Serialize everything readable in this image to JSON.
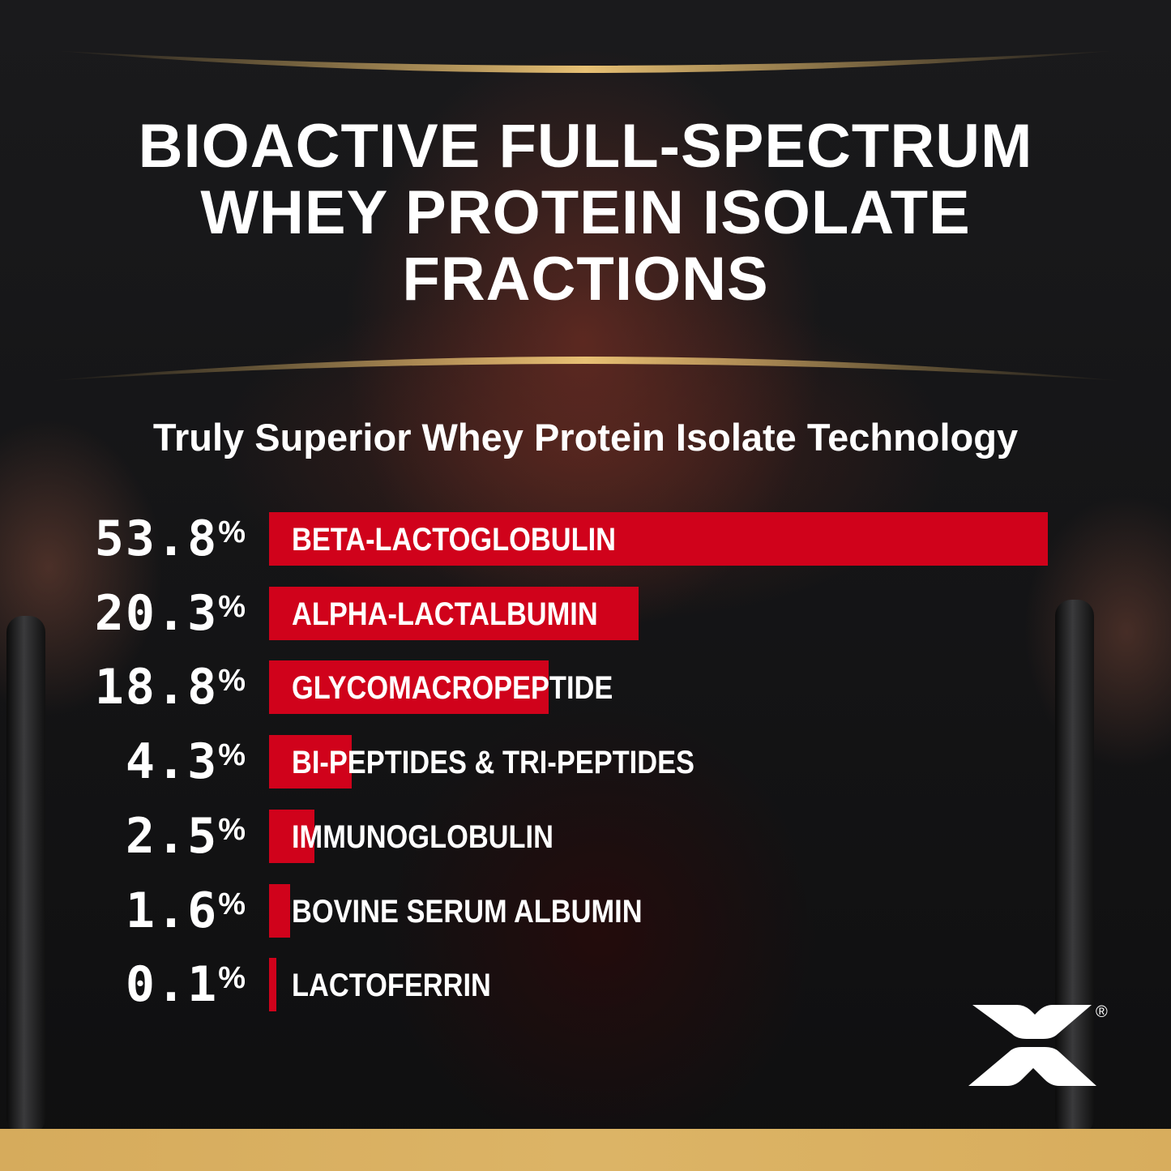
{
  "title_lines": [
    "BIOACTIVE FULL-SPECTRUM",
    "WHEY PROTEIN ISOLATE",
    "FRACTIONS"
  ],
  "subtitle": "Truly Superior Whey Protein Isolate Technology",
  "colors": {
    "bar": "#d0021b",
    "gold": "#d9ae5e",
    "text": "#ffffff"
  },
  "logo": {
    "icon": "x-brand-logo",
    "mark": "®"
  },
  "chart_data": {
    "type": "bar",
    "orientation": "horizontal",
    "title": "BIOACTIVE FULL-SPECTRUM WHEY PROTEIN ISOLATE FRACTIONS",
    "subtitle": "Truly Superior Whey Protein Isolate Technology",
    "unit": "%",
    "categories": [
      "BETA-LACTOGLOBULIN",
      "ALPHA-LACTALBUMIN",
      "GLYCOMACROPEPTIDE",
      "BI-PEPTIDES & TRI-PEPTIDES",
      "IMMUNOGLOBULIN",
      "BOVINE SERUM ALBUMIN",
      "LACTOFERRIN"
    ],
    "values": [
      53.8,
      20.3,
      18.8,
      4.3,
      2.5,
      1.6,
      0.1
    ],
    "value_labels": [
      "53.8",
      "20.3",
      "18.8",
      "4.3",
      "2.5",
      "1.6",
      "0.1"
    ],
    "grid": false
  }
}
